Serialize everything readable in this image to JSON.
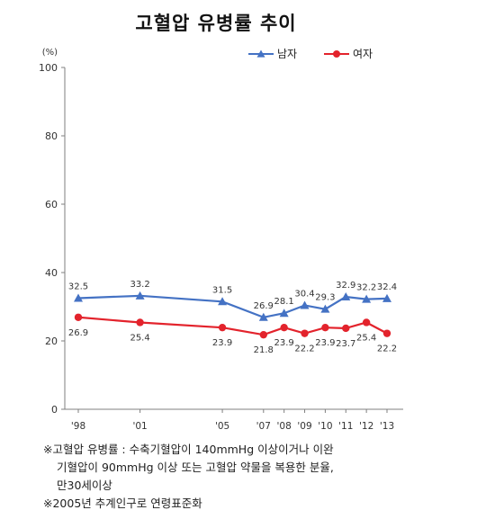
{
  "chart_data": {
    "type": "line",
    "title": "고혈압 유병률 추이",
    "unit_label": "(%)",
    "ylim": [
      0,
      100
    ],
    "y_ticks": [
      "0",
      "20",
      "40",
      "60",
      "80",
      "100"
    ],
    "categories": [
      "'98",
      "'01",
      "'05",
      "'07",
      "'08",
      "'09",
      "'10",
      "'11",
      "'12",
      "'13"
    ],
    "x_numeric": [
      1998,
      2001,
      2005,
      2007,
      2008,
      2009,
      2010,
      2011,
      2012,
      2013
    ],
    "legend_position": "top-right",
    "grid": false,
    "series": [
      {
        "name": "남자",
        "color": "#4472c4",
        "marker": "triangle",
        "values": [
          32.5,
          33.2,
          31.5,
          26.9,
          28.1,
          30.4,
          29.3,
          32.9,
          32.2,
          32.4
        ],
        "labels": [
          "32.5",
          "33.2",
          "31.5",
          "26.9",
          "28.1",
          "30.4",
          "29.3",
          "32.9",
          "32.2",
          "32.4"
        ]
      },
      {
        "name": "여자",
        "color": "#e3232c",
        "marker": "circle",
        "values": [
          26.9,
          25.4,
          23.9,
          21.8,
          23.9,
          22.2,
          23.9,
          23.7,
          25.4,
          22.2
        ],
        "labels": [
          "26.9",
          "25.4",
          "23.9",
          "21.8",
          "23.9",
          "22.2",
          "23.9",
          "23.7",
          "25.4",
          "22.2"
        ]
      }
    ]
  },
  "notes": {
    "line1": "※고혈압 유병률 : 수축기혈압이 140mmHg 이상이거나 이완",
    "line2": "기혈압이 90mmHg 이상 또는 고혈압 약물을 복용한 분율,",
    "line3": "만30세이상",
    "line4": "※2005년 추계인구로 연령표준화"
  }
}
